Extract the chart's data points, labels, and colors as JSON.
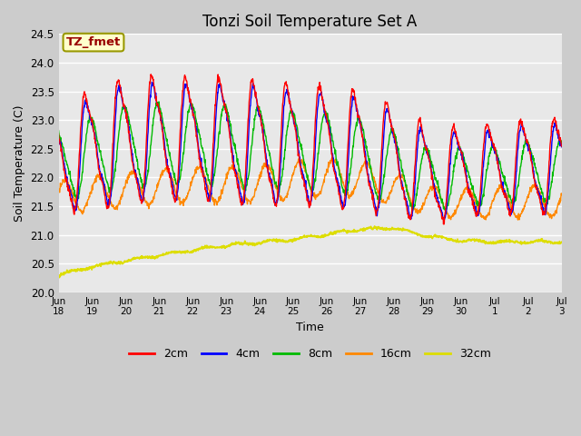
{
  "title": "Tonzi Soil Temperature Set A",
  "xlabel": "Time",
  "ylabel": "Soil Temperature (C)",
  "ylim": [
    20.0,
    24.5
  ],
  "annotation_label": "TZ_fmet",
  "annotation_box_facecolor": "#ffffcc",
  "annotation_text_color": "#990000",
  "annotation_border_color": "#999900",
  "fig_bg_color": "#cccccc",
  "plot_bg_color": "#e8e8e8",
  "grid_color": "#ffffff",
  "colors": {
    "2cm": "#ff0000",
    "4cm": "#0000ff",
    "8cm": "#00bb00",
    "16cm": "#ff8800",
    "32cm": "#dddd00"
  },
  "x_ticks_labels": [
    "Jun\n18",
    "Jun\n19",
    "Jun\n20",
    "Jun\n21",
    "Jun\n22",
    "Jun\n23",
    "Jun\n24",
    "Jun\n25",
    "Jun\n26",
    "Jun\n27",
    "Jun\n28",
    "Jun\n29",
    "Jun\n30",
    "Jul\n1",
    "Jul\n2",
    "Jul\n3"
  ],
  "yticks": [
    20.0,
    20.5,
    21.0,
    21.5,
    22.0,
    22.5,
    23.0,
    23.5,
    24.0,
    24.5
  ],
  "legend_entries": [
    "2cm",
    "4cm",
    "8cm",
    "16cm",
    "32cm"
  ],
  "n_days": 15,
  "pts_per_day": 96,
  "lw_main": 1.0,
  "lw_32": 1.3
}
